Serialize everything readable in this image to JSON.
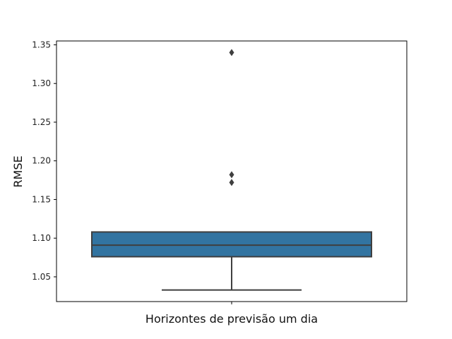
{
  "chart_data": {
    "type": "box",
    "category": "Horizontes de previsão um dia",
    "xlabel": "Horizontes de previsão um dia",
    "ylabel": "RMSE",
    "ylim": [
      1.018,
      1.355
    ],
    "yticks": [
      1.05,
      1.1,
      1.15,
      1.2,
      1.25,
      1.3,
      1.35
    ],
    "ytick_labels": [
      "1.05",
      "1.10",
      "1.15",
      "1.20",
      "1.25",
      "1.30",
      "1.35"
    ],
    "box": {
      "whisker_low": 1.033,
      "q1": 1.076,
      "median": 1.091,
      "q3": 1.108,
      "whisker_high": 1.108
    },
    "outliers": [
      1.172,
      1.182,
      1.34
    ],
    "grid": false,
    "colors": {
      "box_fill": "#3274a1",
      "line": "#3f3f3f"
    }
  }
}
